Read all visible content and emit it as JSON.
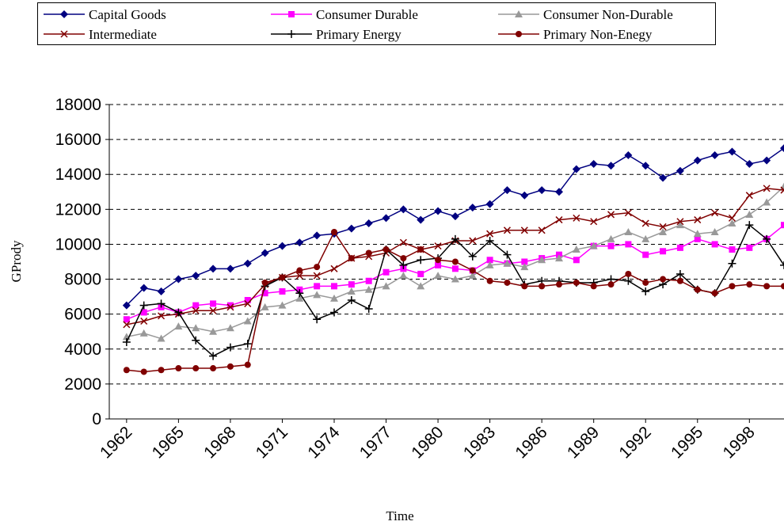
{
  "chart_data": {
    "type": "line",
    "x_label": "Time",
    "y_label": "GPrody",
    "x": [
      1962,
      1963,
      1964,
      1965,
      1966,
      1967,
      1968,
      1969,
      1970,
      1971,
      1972,
      1973,
      1974,
      1975,
      1976,
      1977,
      1978,
      1979,
      1980,
      1981,
      1982,
      1983,
      1984,
      1985,
      1986,
      1987,
      1988,
      1989,
      1990,
      1991,
      1992,
      1993,
      1994,
      1995,
      1996,
      1997,
      1998,
      1999,
      2000
    ],
    "xlim": [
      1961,
      2000
    ],
    "xticks": [
      1962,
      1965,
      1968,
      1971,
      1974,
      1977,
      1980,
      1983,
      1986,
      1989,
      1992,
      1995,
      1998
    ],
    "ylim": [
      0,
      18000
    ],
    "yticks": [
      0,
      2000,
      4000,
      6000,
      8000,
      10000,
      12000,
      14000,
      16000,
      18000
    ],
    "grid": true,
    "series": [
      {
        "name": "Capital Goods",
        "color": "#000080",
        "marker": "diamond",
        "values": [
          6500,
          7500,
          7300,
          8000,
          8200,
          8600,
          8600,
          8900,
          9500,
          9900,
          10100,
          10500,
          10600,
          10900,
          11200,
          11500,
          12000,
          11400,
          11900,
          11600,
          12100,
          12300,
          13100,
          12800,
          13100,
          13000,
          14300,
          14600,
          14500,
          15100,
          14500,
          13800,
          14200,
          14800,
          15100,
          15300,
          14600,
          14800,
          15500
        ]
      },
      {
        "name": "Consumer Durable",
        "color": "#ff00ff",
        "marker": "square",
        "values": [
          5700,
          6100,
          6400,
          6100,
          6500,
          6600,
          6500,
          6800,
          7200,
          7300,
          7400,
          7600,
          7600,
          7700,
          7900,
          8400,
          8600,
          8300,
          8800,
          8600,
          8500,
          9100,
          8900,
          9000,
          9200,
          9400,
          9100,
          9900,
          9900,
          10000,
          9400,
          9600,
          9800,
          10300,
          10000,
          9700,
          9800,
          10300,
          11100
        ]
      },
      {
        "name": "Consumer Non-Durable",
        "color": "#999999",
        "marker": "triangle",
        "values": [
          4700,
          4900,
          4600,
          5300,
          5200,
          5000,
          5200,
          5600,
          6400,
          6500,
          6900,
          7100,
          6900,
          7300,
          7400,
          7600,
          8200,
          7600,
          8200,
          8000,
          8200,
          8800,
          8900,
          8700,
          9100,
          9200,
          9700,
          9900,
          10300,
          10700,
          10300,
          10700,
          11100,
          10600,
          10700,
          11200,
          11700,
          12400,
          13300
        ]
      },
      {
        "name": "Intermediate",
        "color": "#800000",
        "marker": "x",
        "values": [
          5400,
          5600,
          5900,
          6000,
          6200,
          6200,
          6400,
          6600,
          7700,
          8100,
          8200,
          8200,
          8600,
          9200,
          9300,
          9500,
          10100,
          9700,
          9900,
          10200,
          10200,
          10600,
          10800,
          10800,
          10800,
          11400,
          11500,
          11300,
          11700,
          11800,
          11200,
          11000,
          11300,
          11400,
          11800,
          11500,
          12800,
          13200,
          13100
        ]
      },
      {
        "name": "Primary Energy",
        "color": "#000000",
        "marker": "plus",
        "values": [
          4400,
          6500,
          6600,
          6100,
          4500,
          3600,
          4100,
          4300,
          7600,
          8100,
          7200,
          5700,
          6100,
          6800,
          6300,
          9700,
          8800,
          9100,
          9200,
          10300,
          9300,
          10200,
          9400,
          7700,
          7900,
          7900,
          7800,
          7800,
          8000,
          7900,
          7300,
          7700,
          8300,
          7400,
          7200,
          8900,
          11100,
          10300,
          8800
        ]
      },
      {
        "name": "Primary Non-Enegy",
        "color": "#800000",
        "marker": "circle",
        "values": [
          2800,
          2700,
          2800,
          2900,
          2900,
          2900,
          3000,
          3100,
          7800,
          8100,
          8500,
          8700,
          10700,
          9200,
          9500,
          9700,
          9200,
          9700,
          9100,
          9000,
          8500,
          7900,
          7800,
          7600,
          7600,
          7700,
          7800,
          7600,
          7700,
          8300,
          7800,
          8000,
          7900,
          7400,
          7200,
          7600,
          7700,
          7600,
          7600
        ]
      }
    ]
  }
}
